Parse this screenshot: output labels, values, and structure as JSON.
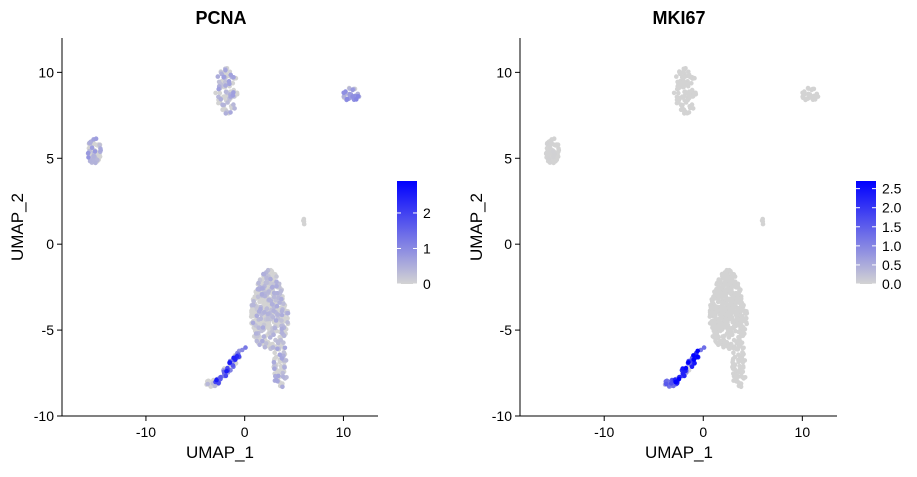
{
  "chart_data": [
    {
      "type": "scatter",
      "title": "PCNA",
      "xlabel": "UMAP_1",
      "ylabel": "UMAP_2",
      "xlim": [
        -18.5,
        13.5
      ],
      "ylim": [
        -10,
        12
      ],
      "xticks": [
        -10,
        0,
        10
      ],
      "yticks": [
        -10,
        -5,
        0,
        5,
        10
      ],
      "legend": {
        "position": "right",
        "ticks": [
          0,
          1,
          2
        ],
        "max": 2.9,
        "colors": [
          "#d3d3d3",
          "#0000ff"
        ]
      },
      "clusters": [
        {
          "cx": -15.2,
          "cy": 5.4,
          "rx": 0.7,
          "ry": 0.8,
          "n": 60,
          "mean_expr": 0.55,
          "max_expr": 1.6
        },
        {
          "cx": -1.8,
          "cy": 8.9,
          "rx": 1.2,
          "ry": 1.4,
          "n": 90,
          "mean_expr": 0.45,
          "max_expr": 1.5
        },
        {
          "cx": 10.8,
          "cy": 8.7,
          "rx": 0.9,
          "ry": 0.4,
          "n": 35,
          "mean_expr": 0.7,
          "max_expr": 1.6
        },
        {
          "cx": 6.0,
          "cy": 1.3,
          "rx": 0.2,
          "ry": 0.2,
          "n": 4,
          "mean_expr": 0.0,
          "max_expr": 0.2
        },
        {
          "cx": 2.5,
          "cy": -3.8,
          "rx": 2.4,
          "ry": 2.3,
          "n": 420,
          "mean_expr": 0.35,
          "max_expr": 1.8
        },
        {
          "cx": 3.6,
          "cy": -7.0,
          "rx": 0.8,
          "ry": 1.4,
          "n": 70,
          "mean_expr": 0.4,
          "max_expr": 1.4
        },
        {
          "cx": -1.5,
          "cy": -7.0,
          "rx": 1.6,
          "ry": 0.6,
          "n": 60,
          "mean_expr": 1.6,
          "max_expr": 2.8
        },
        {
          "cx": -3.2,
          "cy": -8.1,
          "rx": 0.7,
          "ry": 0.2,
          "n": 25,
          "mean_expr": 0.3,
          "max_expr": 2.8
        }
      ]
    },
    {
      "type": "scatter",
      "title": "MKI67",
      "xlabel": "UMAP_1",
      "ylabel": "UMAP_2",
      "xlim": [
        -18.5,
        13.5
      ],
      "ylim": [
        -10,
        12
      ],
      "xticks": [
        -10,
        0,
        10
      ],
      "yticks": [
        -10,
        -5,
        0,
        5,
        10
      ],
      "legend": {
        "position": "right",
        "ticks": [
          "0.0",
          "0.5",
          "1.0",
          "1.5",
          "2.0",
          "2.5"
        ],
        "max": 2.7,
        "colors": [
          "#d3d3d3",
          "#0000ff"
        ]
      },
      "clusters": [
        {
          "cx": -15.2,
          "cy": 5.4,
          "rx": 0.7,
          "ry": 0.8,
          "n": 60,
          "mean_expr": 0.02,
          "max_expr": 1.5
        },
        {
          "cx": -1.8,
          "cy": 8.9,
          "rx": 1.2,
          "ry": 1.4,
          "n": 90,
          "mean_expr": 0.0,
          "max_expr": 0.1
        },
        {
          "cx": 10.8,
          "cy": 8.7,
          "rx": 0.9,
          "ry": 0.4,
          "n": 35,
          "mean_expr": 0.0,
          "max_expr": 0.1
        },
        {
          "cx": 6.0,
          "cy": 1.3,
          "rx": 0.2,
          "ry": 0.2,
          "n": 4,
          "mean_expr": 0.0,
          "max_expr": 0.1
        },
        {
          "cx": 2.5,
          "cy": -3.8,
          "rx": 2.4,
          "ry": 2.3,
          "n": 420,
          "mean_expr": 0.0,
          "max_expr": 0.2
        },
        {
          "cx": 3.6,
          "cy": -7.0,
          "rx": 0.8,
          "ry": 1.4,
          "n": 70,
          "mean_expr": 0.0,
          "max_expr": 0.1
        },
        {
          "cx": -1.5,
          "cy": -7.0,
          "rx": 1.6,
          "ry": 0.6,
          "n": 60,
          "mean_expr": 1.9,
          "max_expr": 2.7
        },
        {
          "cx": -3.2,
          "cy": -8.1,
          "rx": 0.7,
          "ry": 0.2,
          "n": 25,
          "mean_expr": 1.2,
          "max_expr": 2.7
        }
      ]
    }
  ]
}
